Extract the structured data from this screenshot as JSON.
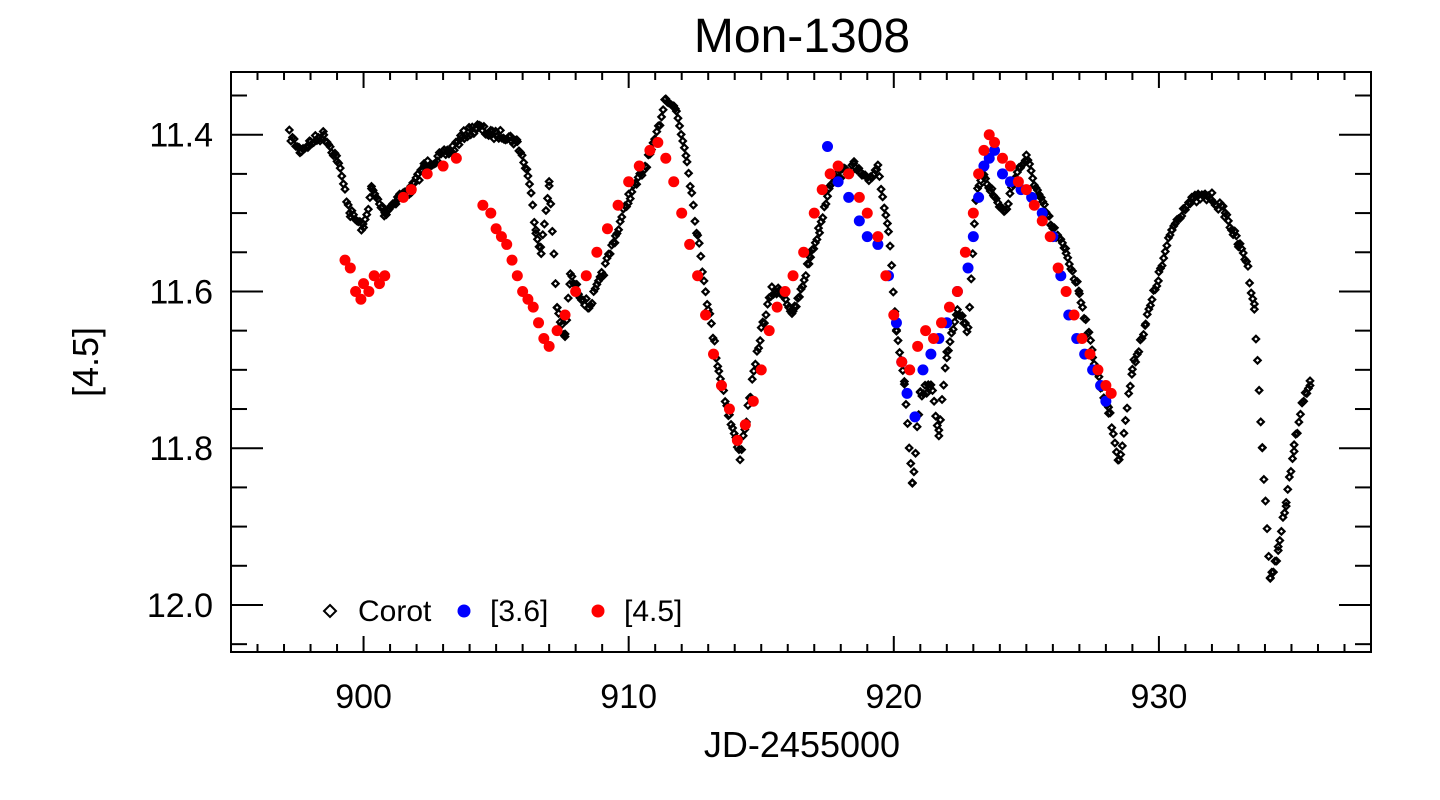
{
  "chart_data": {
    "type": "scatter",
    "title": "Mon-1308",
    "xlabel": "JD-2455000",
    "ylabel": "[4.5]",
    "xlim": [
      895,
      938
    ],
    "ylim": [
      12.06,
      11.32
    ],
    "y_inverted": true,
    "x_major_ticks": [
      900,
      910,
      920,
      930
    ],
    "x_tick_labels": [
      "900",
      "910",
      "920",
      "930"
    ],
    "x_minor_step": 1,
    "y_major_ticks": [
      11.4,
      11.6,
      11.8,
      12.0
    ],
    "y_tick_labels": [
      "11.4",
      "11.6",
      "11.8",
      "12.0"
    ],
    "y_minor_step": 0.05,
    "grid": false,
    "legend_position": "bottom-left",
    "series": [
      {
        "name": "Corot",
        "label": "Corot",
        "marker": "diamond-open",
        "color": "#000000",
        "sampling_step": 0.06,
        "jitter": 0.006,
        "x": [
          897.2,
          897.6,
          898.0,
          898.5,
          899.0,
          899.5,
          900.0,
          900.3,
          900.8,
          901.3,
          901.8,
          902.3,
          902.8,
          903.3,
          903.8,
          904.3,
          904.8,
          905.3,
          905.8,
          906.2,
          906.5,
          906.7,
          907.0,
          907.3,
          907.6,
          907.8,
          908.1,
          908.5,
          909.0,
          909.5,
          910.0,
          910.5,
          911.0,
          911.4,
          911.8,
          912.2,
          912.6,
          913.0,
          913.4,
          913.8,
          914.2,
          914.6,
          915.0,
          915.4,
          915.8,
          916.2,
          916.5,
          916.8,
          917.2,
          917.6,
          918.0,
          918.5,
          919.0,
          919.4,
          919.8,
          920.1,
          920.4,
          920.7,
          921.0,
          921.4,
          921.7,
          922.0,
          922.4,
          922.8,
          923.1,
          923.4,
          923.8,
          924.2,
          924.6,
          925.0,
          925.5,
          926.0,
          926.5,
          927.0,
          927.5,
          927.8,
          928.1,
          928.5,
          929.0,
          929.5,
          930.0,
          930.5,
          931.0,
          931.5,
          932.0,
          932.5,
          933.0,
          933.3,
          933.6,
          933.9,
          934.2,
          934.5,
          934.8,
          935.1,
          935.4,
          935.7
        ],
        "y": [
          11.4,
          11.42,
          11.41,
          11.4,
          11.43,
          11.5,
          11.52,
          11.47,
          11.5,
          11.48,
          11.47,
          11.44,
          11.43,
          11.42,
          11.4,
          11.39,
          11.4,
          11.4,
          11.41,
          11.45,
          11.52,
          11.55,
          11.46,
          11.62,
          11.66,
          11.58,
          11.6,
          11.62,
          11.58,
          11.53,
          11.48,
          11.45,
          11.41,
          11.35,
          11.37,
          11.43,
          11.53,
          11.62,
          11.7,
          11.76,
          11.81,
          11.73,
          11.65,
          11.6,
          11.6,
          11.63,
          11.6,
          11.56,
          11.52,
          11.46,
          11.45,
          11.44,
          11.46,
          11.44,
          11.52,
          11.65,
          11.72,
          11.85,
          11.73,
          11.72,
          11.78,
          11.68,
          11.62,
          11.65,
          11.48,
          11.45,
          11.48,
          11.5,
          11.45,
          11.43,
          11.48,
          11.52,
          11.55,
          11.6,
          11.68,
          11.72,
          11.75,
          11.82,
          11.7,
          11.64,
          11.58,
          11.52,
          11.49,
          11.48,
          11.48,
          11.5,
          11.54,
          11.56,
          11.62,
          11.8,
          11.97,
          11.93,
          11.87,
          11.8,
          11.74,
          11.72
        ]
      },
      {
        "name": "[3.6]",
        "label": "[3.6]",
        "marker": "filled-circle",
        "color": "#0000ff",
        "x": [
          917.5,
          917.9,
          918.3,
          918.7,
          919.0,
          919.4,
          919.8,
          920.1,
          920.3,
          920.5,
          920.8,
          921.1,
          921.4,
          921.7,
          922.0,
          922.4,
          922.8,
          923.0,
          923.2,
          923.4,
          923.6,
          923.8,
          924.1,
          924.4,
          924.8,
          925.2,
          925.6,
          926.0,
          926.3,
          926.6,
          926.9,
          927.2,
          927.5,
          927.8,
          928.0
        ],
        "y": [
          11.415,
          11.46,
          11.48,
          11.51,
          11.53,
          11.54,
          11.58,
          11.64,
          11.69,
          11.73,
          11.76,
          11.7,
          11.68,
          11.66,
          11.64,
          11.6,
          11.57,
          11.53,
          11.48,
          11.44,
          11.43,
          11.42,
          11.45,
          11.46,
          11.47,
          11.48,
          11.5,
          11.53,
          11.58,
          11.63,
          11.66,
          11.68,
          11.7,
          11.72,
          11.74
        ]
      },
      {
        "name": "[4.5]",
        "label": "[4.5]",
        "marker": "filled-circle",
        "color": "#ff0000",
        "x": [
          899.3,
          899.5,
          899.7,
          899.9,
          900.0,
          900.2,
          900.4,
          900.6,
          900.8,
          901.5,
          901.8,
          902.4,
          903.0,
          903.5,
          904.5,
          904.8,
          905.0,
          905.2,
          905.4,
          905.6,
          905.8,
          906.0,
          906.2,
          906.4,
          906.6,
          906.8,
          907.0,
          907.3,
          907.6,
          908.0,
          908.4,
          908.8,
          909.2,
          909.6,
          910.0,
          910.4,
          910.8,
          911.1,
          911.4,
          911.7,
          912.0,
          912.3,
          912.6,
          912.9,
          913.2,
          913.5,
          913.8,
          914.1,
          914.4,
          914.7,
          915.0,
          915.3,
          915.6,
          915.9,
          916.2,
          916.6,
          917.0,
          917.3,
          917.6,
          917.9,
          918.3,
          918.7,
          919.0,
          919.4,
          919.7,
          920.0,
          920.3,
          920.6,
          920.9,
          921.2,
          921.5,
          921.8,
          922.1,
          922.4,
          922.7,
          923.0,
          923.2,
          923.4,
          923.6,
          923.8,
          924.1,
          924.4,
          924.7,
          925.0,
          925.3,
          925.6,
          925.9,
          926.2,
          926.5,
          926.8,
          927.1,
          927.4,
          927.7,
          928.0,
          928.2
        ],
        "y": [
          11.56,
          11.57,
          11.6,
          11.61,
          11.59,
          11.6,
          11.58,
          11.59,
          11.58,
          11.48,
          11.47,
          11.45,
          11.44,
          11.43,
          11.49,
          11.5,
          11.52,
          11.53,
          11.54,
          11.56,
          11.58,
          11.6,
          11.61,
          11.62,
          11.64,
          11.66,
          11.67,
          11.65,
          11.63,
          11.6,
          11.58,
          11.55,
          11.52,
          11.49,
          11.46,
          11.44,
          11.42,
          11.41,
          11.43,
          11.46,
          11.5,
          11.54,
          11.58,
          11.63,
          11.68,
          11.72,
          11.75,
          11.79,
          11.77,
          11.74,
          11.7,
          11.65,
          11.62,
          11.6,
          11.58,
          11.55,
          11.5,
          11.47,
          11.45,
          11.44,
          11.45,
          11.48,
          11.5,
          11.53,
          11.58,
          11.63,
          11.69,
          11.7,
          11.67,
          11.65,
          11.66,
          11.64,
          11.62,
          11.6,
          11.55,
          11.5,
          11.45,
          11.42,
          11.4,
          11.41,
          11.43,
          11.44,
          11.46,
          11.47,
          11.49,
          11.51,
          11.53,
          11.57,
          11.6,
          11.63,
          11.66,
          11.68,
          11.7,
          11.72,
          11.73
        ]
      }
    ]
  }
}
